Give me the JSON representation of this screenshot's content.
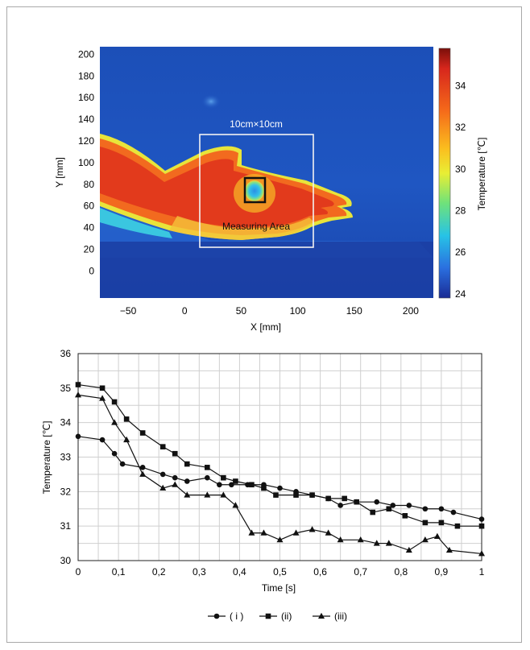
{
  "thermal": {
    "xlabel": "X [mm]",
    "ylabel": "Y [mm]",
    "x_ticks": [
      "−50",
      "0",
      "50",
      "100",
      "150",
      "200"
    ],
    "y_ticks": [
      "200",
      "180",
      "160",
      "140",
      "120",
      "100",
      "80",
      "60",
      "40",
      "20",
      "0"
    ],
    "xlim": [
      -75,
      220
    ],
    "ylim": [
      -25,
      207
    ],
    "box_label": "10cm×10cm",
    "area_label": "Measuring Area",
    "colorbar": {
      "label": "Temperature [℃]",
      "ticks": [
        "34",
        "32",
        "30",
        "28",
        "26",
        "24"
      ],
      "range": [
        23.8,
        35.8
      ]
    }
  },
  "chart_data": {
    "type": "line",
    "title": "",
    "xlabel": "Time [s]",
    "ylabel": "Temperature [℃]",
    "xlim": [
      0,
      1
    ],
    "ylim": [
      30,
      36
    ],
    "x_ticks": [
      "0",
      "0,1",
      "0,2",
      "0,3",
      "0,4",
      "0,5",
      "0,6",
      "0,7",
      "0,8",
      "0,9",
      "1"
    ],
    "y_ticks": [
      "36",
      "35",
      "34",
      "33",
      "32",
      "31",
      "30"
    ],
    "grid": true,
    "legend_position": "bottom-center",
    "series": [
      {
        "name": "( i )",
        "marker": "circle",
        "points": [
          [
            0,
            33.6
          ],
          [
            0.06,
            33.5
          ],
          [
            0.09,
            33.1
          ],
          [
            0.11,
            32.8
          ],
          [
            0.16,
            32.7
          ],
          [
            0.21,
            32.5
          ],
          [
            0.24,
            32.4
          ],
          [
            0.27,
            32.3
          ],
          [
            0.32,
            32.4
          ],
          [
            0.35,
            32.2
          ],
          [
            0.38,
            32.2
          ],
          [
            0.42,
            32.2
          ],
          [
            0.46,
            32.2
          ],
          [
            0.5,
            32.1
          ],
          [
            0.54,
            32.0
          ],
          [
            0.58,
            31.9
          ],
          [
            0.62,
            31.8
          ],
          [
            0.65,
            31.6
          ],
          [
            0.69,
            31.7
          ],
          [
            0.74,
            31.7
          ],
          [
            0.78,
            31.6
          ],
          [
            0.82,
            31.6
          ],
          [
            0.86,
            31.5
          ],
          [
            0.9,
            31.5
          ],
          [
            0.93,
            31.4
          ],
          [
            1.0,
            31.2
          ]
        ]
      },
      {
        "name": "(ii)",
        "marker": "square",
        "points": [
          [
            0,
            35.1
          ],
          [
            0.06,
            35.0
          ],
          [
            0.09,
            34.6
          ],
          [
            0.12,
            34.1
          ],
          [
            0.16,
            33.7
          ],
          [
            0.21,
            33.3
          ],
          [
            0.24,
            33.1
          ],
          [
            0.27,
            32.8
          ],
          [
            0.32,
            32.7
          ],
          [
            0.36,
            32.4
          ],
          [
            0.39,
            32.3
          ],
          [
            0.43,
            32.2
          ],
          [
            0.46,
            32.1
          ],
          [
            0.49,
            31.9
          ],
          [
            0.54,
            31.9
          ],
          [
            0.58,
            31.9
          ],
          [
            0.62,
            31.8
          ],
          [
            0.66,
            31.8
          ],
          [
            0.69,
            31.7
          ],
          [
            0.73,
            31.4
          ],
          [
            0.77,
            31.5
          ],
          [
            0.81,
            31.3
          ],
          [
            0.86,
            31.1
          ],
          [
            0.9,
            31.1
          ],
          [
            0.94,
            31.0
          ],
          [
            1.0,
            31.0
          ]
        ]
      },
      {
        "name": "(iii)",
        "marker": "triangle",
        "points": [
          [
            0,
            34.8
          ],
          [
            0.06,
            34.7
          ],
          [
            0.09,
            34.0
          ],
          [
            0.12,
            33.5
          ],
          [
            0.16,
            32.5
          ],
          [
            0.21,
            32.1
          ],
          [
            0.24,
            32.2
          ],
          [
            0.27,
            31.9
          ],
          [
            0.32,
            31.9
          ],
          [
            0.36,
            31.9
          ],
          [
            0.39,
            31.6
          ],
          [
            0.43,
            30.8
          ],
          [
            0.46,
            30.8
          ],
          [
            0.5,
            30.6
          ],
          [
            0.54,
            30.8
          ],
          [
            0.58,
            30.9
          ],
          [
            0.62,
            30.8
          ],
          [
            0.65,
            30.6
          ],
          [
            0.7,
            30.6
          ],
          [
            0.74,
            30.5
          ],
          [
            0.77,
            30.5
          ],
          [
            0.82,
            30.3
          ],
          [
            0.86,
            30.6
          ],
          [
            0.89,
            30.7
          ],
          [
            0.92,
            30.3
          ],
          [
            1.0,
            30.2
          ]
        ]
      }
    ]
  }
}
